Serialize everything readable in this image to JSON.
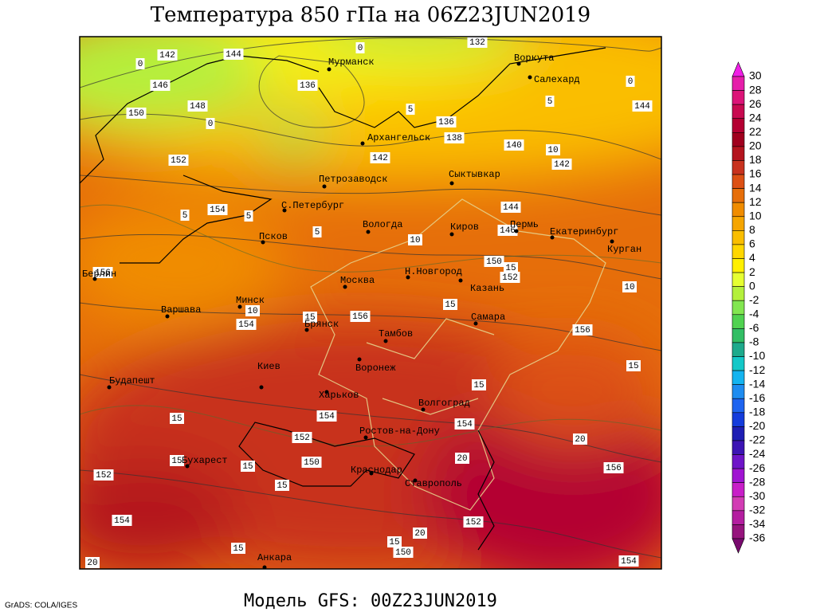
{
  "title": "Температура 850 гПа на 06Z23JUN2019",
  "footer": "Модель GFS: 00Z23JUN2019",
  "credit": "GrADS: COLA/IGES",
  "cities": [
    "Мурманск",
    "Воркута",
    "Салехард",
    "Архангельск",
    "Петрозаводск",
    "Сыктывкар",
    "С.Петербург",
    "Вологда",
    "Киров",
    "Пермь",
    "Екатеринбург",
    "Курган",
    "Псков",
    "Н.Новгород",
    "Казань",
    "Берлин",
    "Москва",
    "Минск",
    "Варшава",
    "Самара",
    "Брянск",
    "Тамбов",
    "Воронеж",
    "Киев",
    "Будапешт",
    "Харьков",
    "Волгоград",
    "Ростов-на-Дону",
    "Бухарест",
    "Краснодар",
    "Ставрополь",
    "Анкара"
  ],
  "contour_labels": [
    142,
    144,
    0,
    0,
    132,
    146,
    148,
    150,
    0,
    136,
    5,
    136,
    138,
    140,
    10,
    142,
    144,
    5,
    0,
    152,
    142,
    154,
    5,
    5,
    5,
    144,
    146,
    10,
    150,
    15,
    152,
    156,
    10,
    154,
    15,
    156,
    15,
    10,
    156,
    15,
    15,
    15,
    154,
    152,
    154,
    20,
    20,
    150,
    15,
    15,
    152,
    15,
    156,
    154,
    152,
    20,
    15,
    150,
    15,
    20,
    154
  ],
  "colorbar": {
    "labels": [
      30,
      28,
      26,
      24,
      22,
      20,
      18,
      16,
      14,
      12,
      10,
      8,
      6,
      4,
      2,
      0,
      -2,
      -4,
      -6,
      -8,
      -10,
      -12,
      -14,
      -16,
      -18,
      -20,
      -22,
      -24,
      -26,
      -28,
      -30,
      -32,
      -34,
      -36
    ],
    "colors": [
      "#f01ee6",
      "#e61eaa",
      "#dc1478",
      "#c80a50",
      "#b40032",
      "#a0001e",
      "#b4141e",
      "#c8321e",
      "#dc5014",
      "#e66e0a",
      "#f08c00",
      "#f5a500",
      "#fabe00",
      "#ffd700",
      "#fff000",
      "#e6ff32",
      "#b4f03c",
      "#82e650",
      "#50d250",
      "#32be64",
      "#1eaa8c",
      "#14c8c8",
      "#14b4f0",
      "#1e8cf0",
      "#1e64f0",
      "#143cdc",
      "#1e1eb4",
      "#3c14b4",
      "#6e14c8",
      "#a014d2",
      "#c81ec8",
      "#d23cb4",
      "#b41ea0",
      "#96147d",
      "#780a6e"
    ]
  }
}
